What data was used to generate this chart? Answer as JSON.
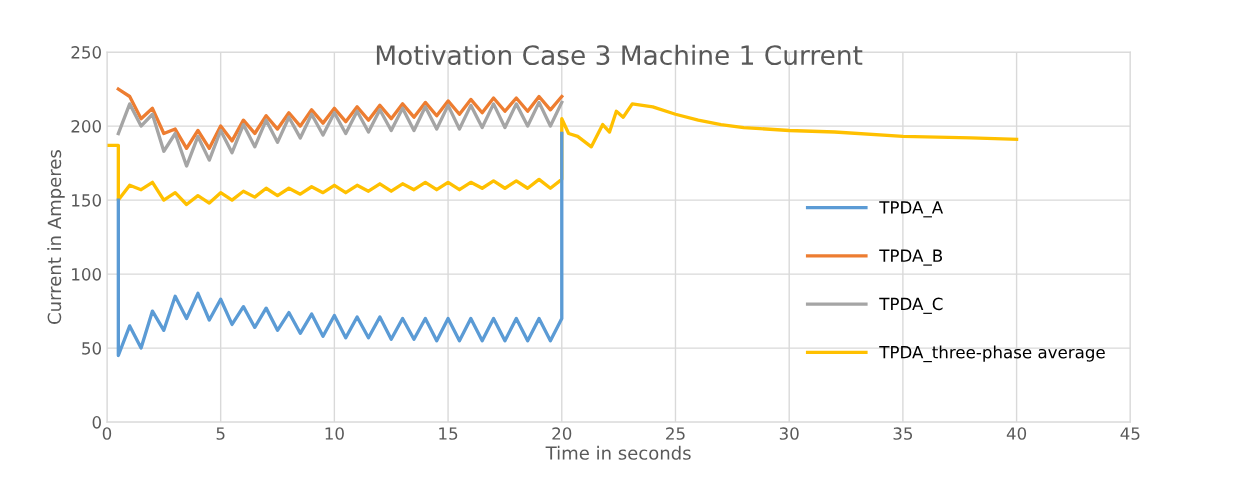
{
  "chart_data": {
    "type": "line",
    "title": "Motivation Case 3 Machine 1 Current",
    "xlabel": "Time in seconds",
    "ylabel": "Current in Amperes",
    "xlim": [
      0,
      45
    ],
    "xticks": [
      0,
      5,
      10,
      15,
      20,
      25,
      30,
      35,
      40,
      45
    ],
    "ylim": [
      0,
      250
    ],
    "yticks": [
      0,
      50,
      100,
      150,
      200,
      250
    ],
    "grid": true,
    "legend": "right",
    "marker": "none",
    "line_style": "solid",
    "series": [
      {
        "name": "TPDA_A",
        "color": "#5b9bd5",
        "x": [
          0.5,
          0.5,
          1.0,
          1.5,
          2.0,
          2.5,
          3.0,
          3.5,
          4.0,
          4.5,
          5.0,
          5.5,
          6.0,
          6.5,
          7.0,
          7.5,
          8.0,
          8.5,
          9.0,
          9.5,
          10.0,
          10.5,
          11.0,
          11.5,
          12.0,
          12.5,
          13.0,
          13.5,
          14.0,
          14.5,
          15.0,
          15.5,
          16.0,
          16.5,
          17.0,
          17.5,
          18.0,
          18.5,
          19.0,
          19.5,
          20.0,
          20.0
        ],
        "values": [
          150,
          45,
          65,
          50,
          75,
          62,
          85,
          70,
          87,
          69,
          83,
          66,
          78,
          64,
          77,
          62,
          74,
          60,
          73,
          58,
          72,
          57,
          71,
          57,
          71,
          56,
          70,
          56,
          70,
          55,
          70,
          55,
          70,
          55,
          70,
          55,
          70,
          55,
          70,
          55,
          70,
          195
        ]
      },
      {
        "name": "TPDA_B",
        "color": "#ed7d31",
        "x": [
          0.5,
          1.0,
          1.5,
          2.0,
          2.5,
          3.0,
          3.5,
          4.0,
          4.5,
          5.0,
          5.5,
          6.0,
          6.5,
          7.0,
          7.5,
          8.0,
          8.5,
          9.0,
          9.5,
          10.0,
          10.5,
          11.0,
          11.5,
          12.0,
          12.5,
          13.0,
          13.5,
          14.0,
          14.5,
          15.0,
          15.5,
          16.0,
          16.5,
          17.0,
          17.5,
          18.0,
          18.5,
          19.0,
          19.5,
          20.0
        ],
        "values": [
          225,
          220,
          205,
          212,
          195,
          198,
          185,
          197,
          185,
          200,
          190,
          204,
          195,
          207,
          198,
          209,
          200,
          211,
          202,
          212,
          203,
          213,
          204,
          214,
          205,
          215,
          206,
          216,
          207,
          217,
          208,
          218,
          209,
          219,
          210,
          219,
          210,
          220,
          211,
          220
        ]
      },
      {
        "name": "TPDA_C",
        "color": "#a5a5a5",
        "x": [
          0.5,
          1.0,
          1.5,
          2.0,
          2.5,
          3.0,
          3.5,
          4.0,
          4.5,
          5.0,
          5.5,
          6.0,
          6.5,
          7.0,
          7.5,
          8.0,
          8.5,
          9.0,
          9.5,
          10.0,
          10.5,
          11.0,
          11.5,
          12.0,
          12.5,
          13.0,
          13.5,
          14.0,
          14.5,
          15.0,
          15.5,
          16.0,
          16.5,
          17.0,
          17.5,
          18.0,
          18.5,
          19.0,
          19.5,
          20.0
        ],
        "values": [
          195,
          215,
          200,
          208,
          183,
          195,
          173,
          193,
          177,
          197,
          182,
          201,
          186,
          204,
          189,
          206,
          192,
          208,
          194,
          209,
          195,
          210,
          196,
          211,
          197,
          212,
          197,
          213,
          198,
          214,
          198,
          214,
          199,
          215,
          199,
          215,
          200,
          216,
          200,
          216
        ]
      },
      {
        "name": "TPDA_three-phase average",
        "color": "#ffc000",
        "x": [
          0,
          0.5,
          0.5,
          1.0,
          1.5,
          2.0,
          2.5,
          3.0,
          3.5,
          4.0,
          4.5,
          5.0,
          5.5,
          6.0,
          6.5,
          7.0,
          7.5,
          8.0,
          8.5,
          9.0,
          9.5,
          10.0,
          10.5,
          11.0,
          11.5,
          12.0,
          12.5,
          13.0,
          13.5,
          14.0,
          14.5,
          15.0,
          15.5,
          16.0,
          16.5,
          17.0,
          17.5,
          18.0,
          18.5,
          19.0,
          19.5,
          20.0,
          20.0,
          20.3,
          20.7,
          21.3,
          21.8,
          22.1,
          22.4,
          22.7,
          23.1,
          24,
          25,
          26,
          27,
          28,
          30,
          32,
          35,
          38,
          40
        ],
        "values": [
          187,
          187,
          150,
          160,
          157,
          162,
          150,
          155,
          147,
          153,
          148,
          155,
          150,
          156,
          152,
          158,
          153,
          158,
          154,
          159,
          155,
          160,
          155,
          160,
          156,
          161,
          156,
          161,
          157,
          162,
          157,
          162,
          157,
          162,
          158,
          163,
          158,
          163,
          158,
          164,
          158,
          164,
          205,
          195,
          193,
          186,
          201,
          196,
          210,
          206,
          215,
          213,
          208,
          204,
          201,
          199,
          197,
          196,
          193,
          192,
          191
        ]
      }
    ]
  }
}
